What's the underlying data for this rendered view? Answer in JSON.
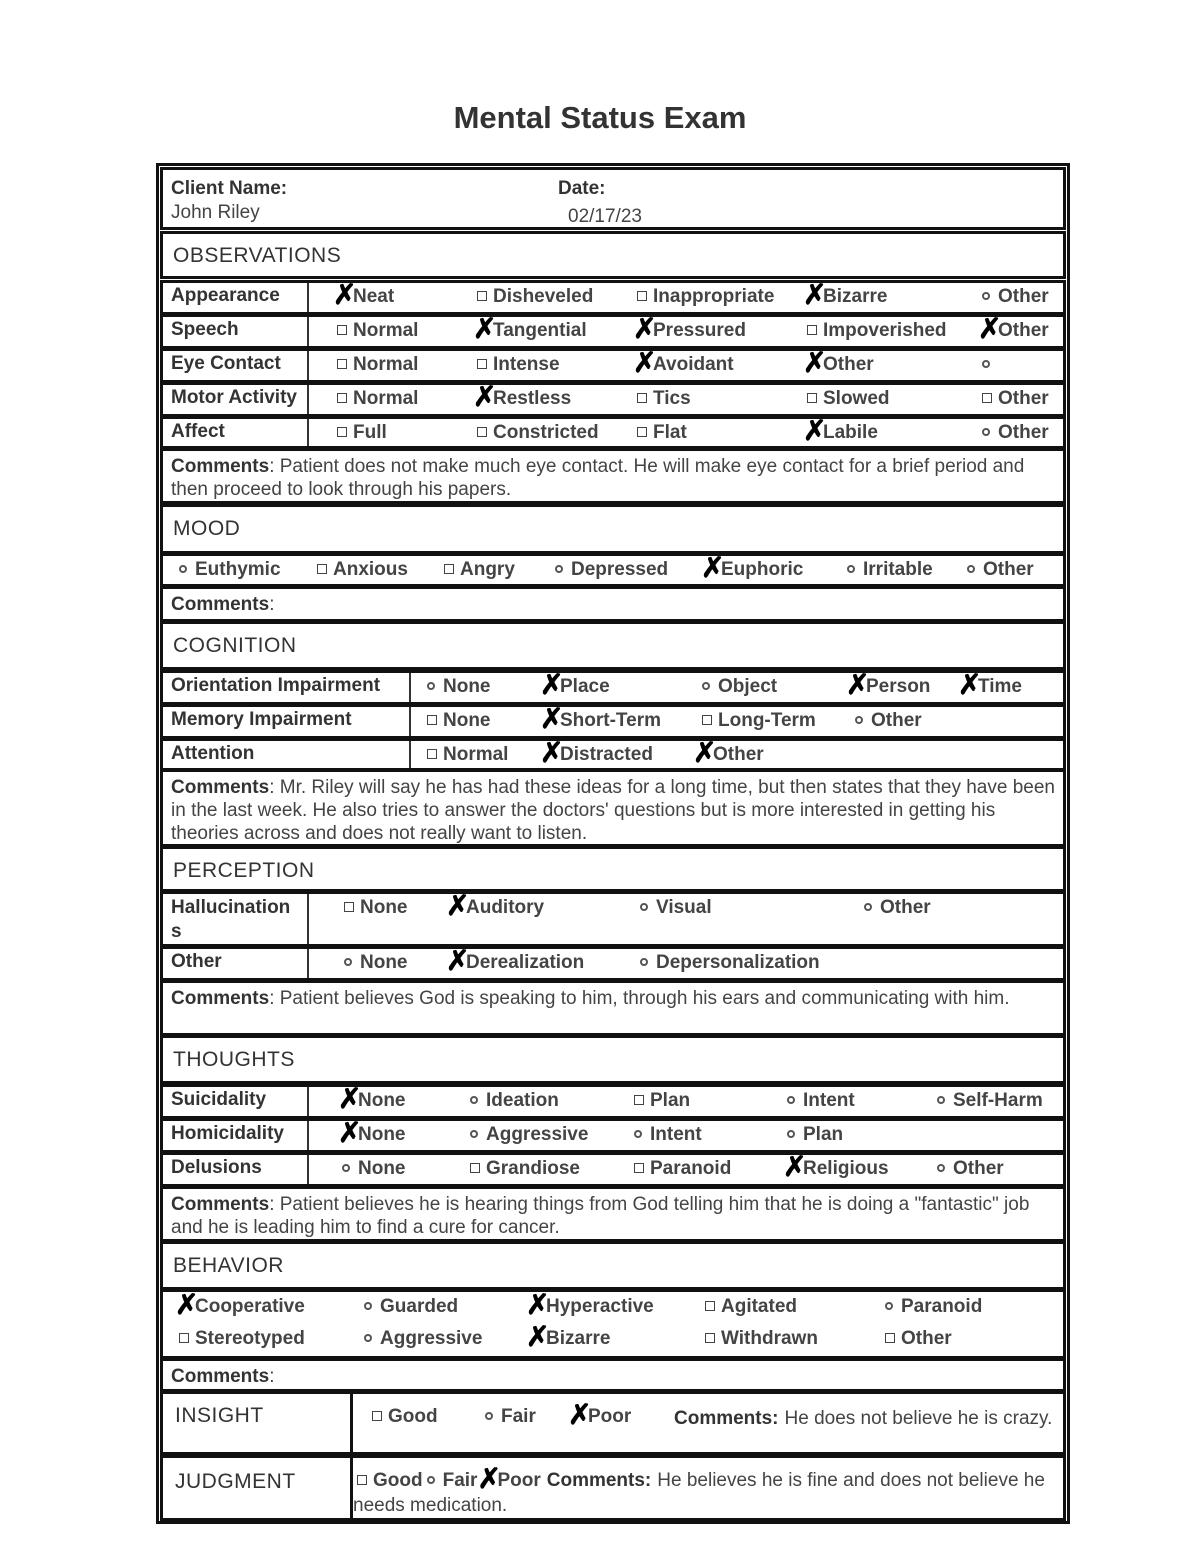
{
  "title": "Mental Status Exam",
  "client": {
    "name_label": "Client Name:",
    "name": "John Riley",
    "date_label": "Date:",
    "date": "02/17/23"
  },
  "comments_label": "Comments",
  "observations": {
    "heading": "OBSERVATIONS",
    "rows": [
      {
        "label": "Appearance",
        "options": [
          {
            "mark": "x",
            "text": "Neat"
          },
          {
            "mark": "box",
            "text": "Disheveled"
          },
          {
            "mark": "box",
            "text": "Inappropriate"
          },
          {
            "mark": "x",
            "text": "Bizarre"
          },
          {
            "mark": "circle",
            "text": "Other"
          }
        ]
      },
      {
        "label": "Speech",
        "options": [
          {
            "mark": "box",
            "text": "Normal"
          },
          {
            "mark": "x",
            "text": "Tangential"
          },
          {
            "mark": "x",
            "text": "Pressured"
          },
          {
            "mark": "box",
            "text": "Impoverished"
          },
          {
            "mark": "x",
            "text": "Other"
          }
        ]
      },
      {
        "label": "Eye Contact",
        "options": [
          {
            "mark": "box",
            "text": "Normal"
          },
          {
            "mark": "box",
            "text": "Intense"
          },
          {
            "mark": "x",
            "text": "Avoidant"
          },
          {
            "mark": "x",
            "text": "Other"
          }
        ]
      },
      {
        "label": "Motor Activity",
        "options": [
          {
            "mark": "box",
            "text": "Normal"
          },
          {
            "mark": "x",
            "text": "Restless"
          },
          {
            "mark": "box",
            "text": "Tics"
          },
          {
            "mark": "box",
            "text": "Slowed"
          },
          {
            "mark": "box",
            "text": "Other"
          }
        ]
      },
      {
        "label": "Affect",
        "options": [
          {
            "mark": "box",
            "text": "Full"
          },
          {
            "mark": "box",
            "text": "Constricted"
          },
          {
            "mark": "box",
            "text": "Flat"
          },
          {
            "mark": "x",
            "text": "Labile"
          },
          {
            "mark": "circle",
            "text": "Other"
          }
        ]
      }
    ],
    "comments": ": Patient does not make much eye contact. He will make eye contact for a brief period and then proceed to look through his papers."
  },
  "mood": {
    "heading": "MOOD",
    "options": [
      {
        "mark": "circle",
        "text": "Euthymic"
      },
      {
        "mark": "box",
        "text": "Anxious"
      },
      {
        "mark": "box",
        "text": "Angry"
      },
      {
        "mark": "circle",
        "text": "Depressed"
      },
      {
        "mark": "x",
        "text": "Euphoric"
      },
      {
        "mark": "circle",
        "text": "Irritable"
      },
      {
        "mark": "circle",
        "text": "Other"
      }
    ],
    "comments": ":"
  },
  "cognition": {
    "heading": "COGNITION",
    "rows": [
      {
        "label": "Orientation Impairment",
        "options": [
          {
            "mark": "circle",
            "text": "None"
          },
          {
            "mark": "x",
            "text": "Place"
          },
          {
            "mark": "circle",
            "text": "Object"
          },
          {
            "mark": "x",
            "text": "Person"
          },
          {
            "mark": "x",
            "text": "Time"
          }
        ]
      },
      {
        "label": "Memory Impairment",
        "options": [
          {
            "mark": "box",
            "text": "None"
          },
          {
            "mark": "x",
            "text": "Short-Term"
          },
          {
            "mark": "box",
            "text": "Long-Term"
          },
          {
            "mark": "circle",
            "text": "Other"
          }
        ]
      },
      {
        "label": "Attention",
        "options": [
          {
            "mark": "box",
            "text": "Normal"
          },
          {
            "mark": "x",
            "text": "Distracted"
          },
          {
            "mark": "x",
            "text": "Other"
          }
        ]
      }
    ],
    "comments": ": Mr. Riley will say he has had these ideas for a long time, but then states that they have been in the last week. He also tries to answer the doctors' questions but is more interested in getting his theories across and does not really want to listen."
  },
  "perception": {
    "heading": "PERCEPTION",
    "rows": [
      {
        "label": "Hallucination s",
        "options": [
          {
            "mark": "box",
            "text": "None"
          },
          {
            "mark": "x",
            "text": "Auditory"
          },
          {
            "mark": "circle",
            "text": "Visual"
          },
          {
            "mark": "circle",
            "text": "Other"
          }
        ]
      },
      {
        "label": "Other",
        "options": [
          {
            "mark": "circle",
            "text": "None"
          },
          {
            "mark": "x",
            "text": "Derealization"
          },
          {
            "mark": "circle",
            "text": "Depersonalization"
          }
        ]
      }
    ],
    "comments": ": Patient believes God is speaking to him, through his ears and communicating with him."
  },
  "thoughts": {
    "heading": "THOUGHTS",
    "rows": [
      {
        "label": "Suicidality",
        "options": [
          {
            "mark": "x",
            "text": "None"
          },
          {
            "mark": "circle",
            "text": "Ideation"
          },
          {
            "mark": "box",
            "text": "Plan"
          },
          {
            "mark": "circle",
            "text": "Intent"
          },
          {
            "mark": "circle",
            "text": "Self-Harm"
          }
        ]
      },
      {
        "label": "Homicidality",
        "options": [
          {
            "mark": "x",
            "text": "None"
          },
          {
            "mark": "circle",
            "text": "Aggressive"
          },
          {
            "mark": "circle",
            "text": "Intent"
          },
          {
            "mark": "circle",
            "text": "Plan"
          }
        ]
      },
      {
        "label": "Delusions",
        "options": [
          {
            "mark": "circle",
            "text": "None"
          },
          {
            "mark": "box",
            "text": "Grandiose"
          },
          {
            "mark": "box",
            "text": "Paranoid"
          },
          {
            "mark": "x",
            "text": "Religious"
          },
          {
            "mark": "circle",
            "text": "Other"
          }
        ]
      }
    ],
    "comments": ": Patient believes he is hearing things from God telling him that he is doing a \"fantastic\" job and he is leading him to find a cure for cancer."
  },
  "behavior": {
    "heading": "BEHAVIOR",
    "options": [
      {
        "mark": "x",
        "text": "Cooperative"
      },
      {
        "mark": "circle",
        "text": "Guarded"
      },
      {
        "mark": "x",
        "text": "Hyperactive"
      },
      {
        "mark": "box",
        "text": "Agitated"
      },
      {
        "mark": "circle",
        "text": "Paranoid"
      },
      {
        "mark": "box",
        "text": "Stereotyped"
      },
      {
        "mark": "circle",
        "text": "Aggressive"
      },
      {
        "mark": "x",
        "text": "Bizarre"
      },
      {
        "mark": "box",
        "text": "Withdrawn"
      },
      {
        "mark": "box",
        "text": "Other"
      }
    ],
    "comments": ":"
  },
  "insight": {
    "heading": "INSIGHT",
    "options": [
      {
        "mark": "box",
        "text": "Good"
      },
      {
        "mark": "circle",
        "text": "Fair"
      },
      {
        "mark": "x",
        "text": "Poor"
      }
    ],
    "comments_label": "Comments:",
    "comments": "He does not believe he is crazy."
  },
  "judgment": {
    "heading": "JUDGMENT",
    "options": [
      {
        "mark": "box",
        "text": "Good"
      },
      {
        "mark": "circle",
        "text": "Fair"
      },
      {
        "mark": "x",
        "text": "Poor"
      }
    ],
    "comments_label": "Comments:",
    "comments": "He believes he is fine and does not believe he needs medication."
  }
}
